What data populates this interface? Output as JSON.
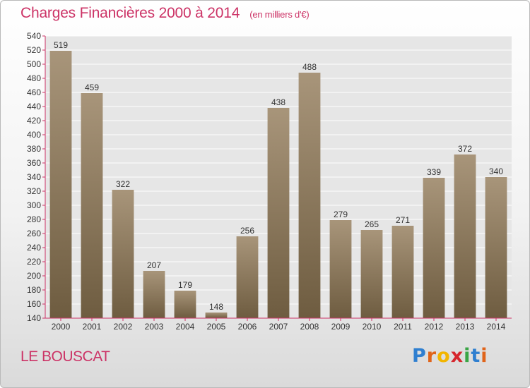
{
  "header": {
    "title": "Charges Financières 2000 à 2014",
    "unit": "(en milliers d'€)"
  },
  "footer": {
    "place": "LE BOUSCAT",
    "logo": [
      "P",
      "r",
      "o",
      "x",
      "i",
      "t",
      "i"
    ],
    "logo_colors": [
      "#2f7fd0",
      "#e0641a",
      "#f2b500",
      "#d6262d",
      "#3aa545",
      "#2f7fd0",
      "#e0641a"
    ]
  },
  "chart_data": {
    "type": "bar",
    "title": "Charges Financières 2000 à 2014",
    "subtitle": "(en milliers d'€)",
    "categories": [
      "2000",
      "2001",
      "2002",
      "2003",
      "2004",
      "2005",
      "2006",
      "2007",
      "2008",
      "2009",
      "2010",
      "2011",
      "2012",
      "2013",
      "2014"
    ],
    "values": [
      519,
      459,
      322,
      207,
      179,
      148,
      256,
      438,
      488,
      279,
      265,
      271,
      339,
      372,
      340
    ],
    "ylim": [
      140,
      540
    ],
    "yticks": [
      140,
      160,
      180,
      200,
      220,
      240,
      260,
      280,
      300,
      320,
      340,
      360,
      380,
      400,
      420,
      440,
      460,
      480,
      500,
      520,
      540
    ],
    "grid": true,
    "bar_color_top": "#a8957a",
    "bar_color_bottom": "#6e5c40",
    "axis_color": "#cc3366"
  }
}
